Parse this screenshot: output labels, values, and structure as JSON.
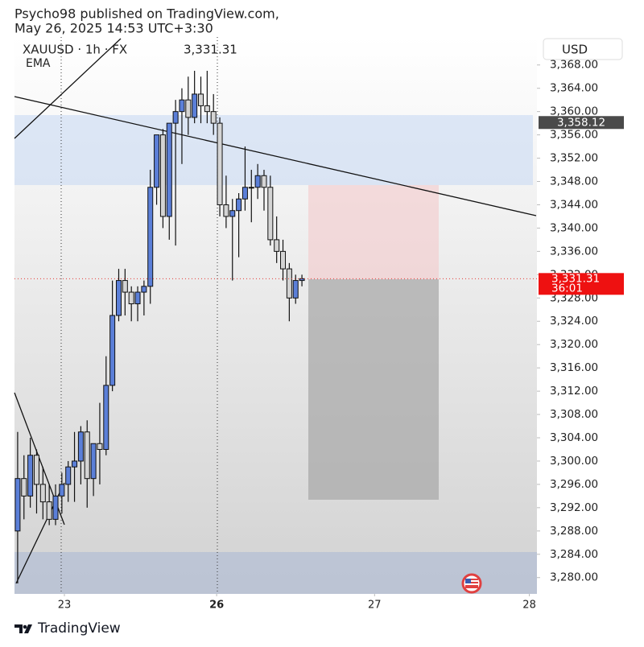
{
  "header": {
    "line1": "Psycho98 published on TradingView.com,",
    "line2": "May 26, 2025 14:53 UTC+3:30"
  },
  "chart_data": {
    "type": "candlestick",
    "symbol": "XAUUSD · 1h · FX",
    "indicator": "EMA",
    "currency": "USD",
    "categories": [
      null,
      null,
      null,
      null,
      null,
      null,
      null,
      null,
      null,
      null,
      null,
      null,
      null,
      null,
      null,
      null,
      null,
      null,
      null,
      null,
      null,
      null,
      null,
      null,
      null,
      null,
      null,
      null,
      null,
      null,
      null,
      null,
      null,
      null,
      null,
      null,
      null,
      null,
      null,
      null,
      null,
      null,
      null,
      null,
      null,
      null
    ],
    "open": [
      3288,
      3297,
      3294,
      3301,
      3296,
      3293,
      3290,
      3294,
      3296,
      3299,
      3300,
      3305,
      3297,
      3303,
      3302,
      3313,
      3325,
      3331,
      3329,
      3327,
      3329,
      3330,
      3347,
      3356,
      3342,
      3358,
      3360,
      3362,
      3359,
      3363,
      3361,
      3360,
      3358,
      3344,
      3342,
      3343,
      3345,
      3347,
      3347,
      3349,
      3347,
      3338,
      3336,
      3333,
      3328,
      3331
    ],
    "high": [
      3305,
      3301,
      3304,
      3302,
      3299,
      3296,
      3296,
      3298,
      3300,
      3305,
      3306,
      3307,
      3303,
      3310,
      3318,
      3331,
      3333,
      3333,
      3330,
      3330,
      3331,
      3350,
      3356,
      3357,
      3358,
      3362,
      3364,
      3366,
      3367,
      3366,
      3367,
      3363,
      3359,
      3349,
      3345,
      3346,
      3354,
      3350,
      3351,
      3350,
      3349,
      3342,
      3338,
      3334,
      3332,
      3332
    ],
    "low": [
      3279,
      3290,
      3292,
      3291,
      3290,
      3289,
      3289,
      3291,
      3293,
      3293,
      3296,
      3292,
      3294,
      3296,
      3301,
      3312,
      3324,
      3325,
      3324,
      3324,
      3325,
      3327,
      3344,
      3340,
      3338,
      3337,
      3351,
      3356,
      3358,
      3358,
      3358,
      3356,
      3342,
      3340,
      3331,
      3335,
      3343,
      3341,
      3345,
      3343,
      3337,
      3334,
      3331,
      3324,
      3327,
      3330
    ],
    "close": [
      3297,
      3294,
      3301,
      3296,
      3293,
      3290,
      3294,
      3296,
      3299,
      3300,
      3305,
      3297,
      3303,
      3302,
      3313,
      3325,
      3331,
      3329,
      3327,
      3329,
      3330,
      3347,
      3356,
      3342,
      3358,
      3360,
      3362,
      3359,
      3363,
      3361,
      3360,
      3358,
      3344,
      3342,
      3343,
      3345,
      3347,
      3347,
      3349,
      3347,
      3338,
      3336,
      3333,
      3328,
      3331,
      3331.31
    ],
    "up_color": "#5b7fd8",
    "down_color": "#d4d4d4",
    "xlim": [
      -0.5,
      82.2
    ],
    "xticks": [
      {
        "value": 7.4,
        "label": "23"
      },
      {
        "value": 31.5,
        "label": "26"
      },
      {
        "value": 56.5,
        "label": "27"
      },
      {
        "value": 81,
        "label": "28"
      }
    ],
    "ylim": [
      3277.2,
      3372.8
    ],
    "yticks": [
      {
        "value": 3280,
        "label": "3,280.00"
      },
      {
        "value": 3284,
        "label": "3,284.00"
      },
      {
        "value": 3288,
        "label": "3,288.00"
      },
      {
        "value": 3292,
        "label": "3,292.00"
      },
      {
        "value": 3296,
        "label": "3,296.00"
      },
      {
        "value": 3300,
        "label": "3,300.00"
      },
      {
        "value": 3304,
        "label": "3,304.00"
      },
      {
        "value": 3308,
        "label": "3,308.00"
      },
      {
        "value": 3312,
        "label": "3,312.00"
      },
      {
        "value": 3316,
        "label": "3,316.00"
      },
      {
        "value": 3320,
        "label": "3,320.00"
      },
      {
        "value": 3324,
        "label": "3,324.00"
      },
      {
        "value": 3328,
        "label": "3,328.00"
      },
      {
        "value": 3332,
        "label": "3,332.00"
      },
      {
        "value": 3336,
        "label": "3,336.00"
      },
      {
        "value": 3340,
        "label": "3,340.00"
      },
      {
        "value": 3344,
        "label": "3,344.00"
      },
      {
        "value": 3348,
        "label": "3,348.00"
      },
      {
        "value": 3352,
        "label": "3,352.00"
      },
      {
        "value": 3356,
        "label": "3,356.00"
      },
      {
        "value": 3360,
        "label": "3,360.00"
      },
      {
        "value": 3364,
        "label": "3,364.00"
      },
      {
        "value": 3368,
        "label": "3,368.00"
      }
    ],
    "marker": {
      "value": 3358.12,
      "label": "3,358.12"
    },
    "last_price": {
      "value": 3331.31,
      "label": "3,331.31"
    },
    "countdown": "36:01"
  },
  "footer": {
    "brand": "TradingView"
  }
}
